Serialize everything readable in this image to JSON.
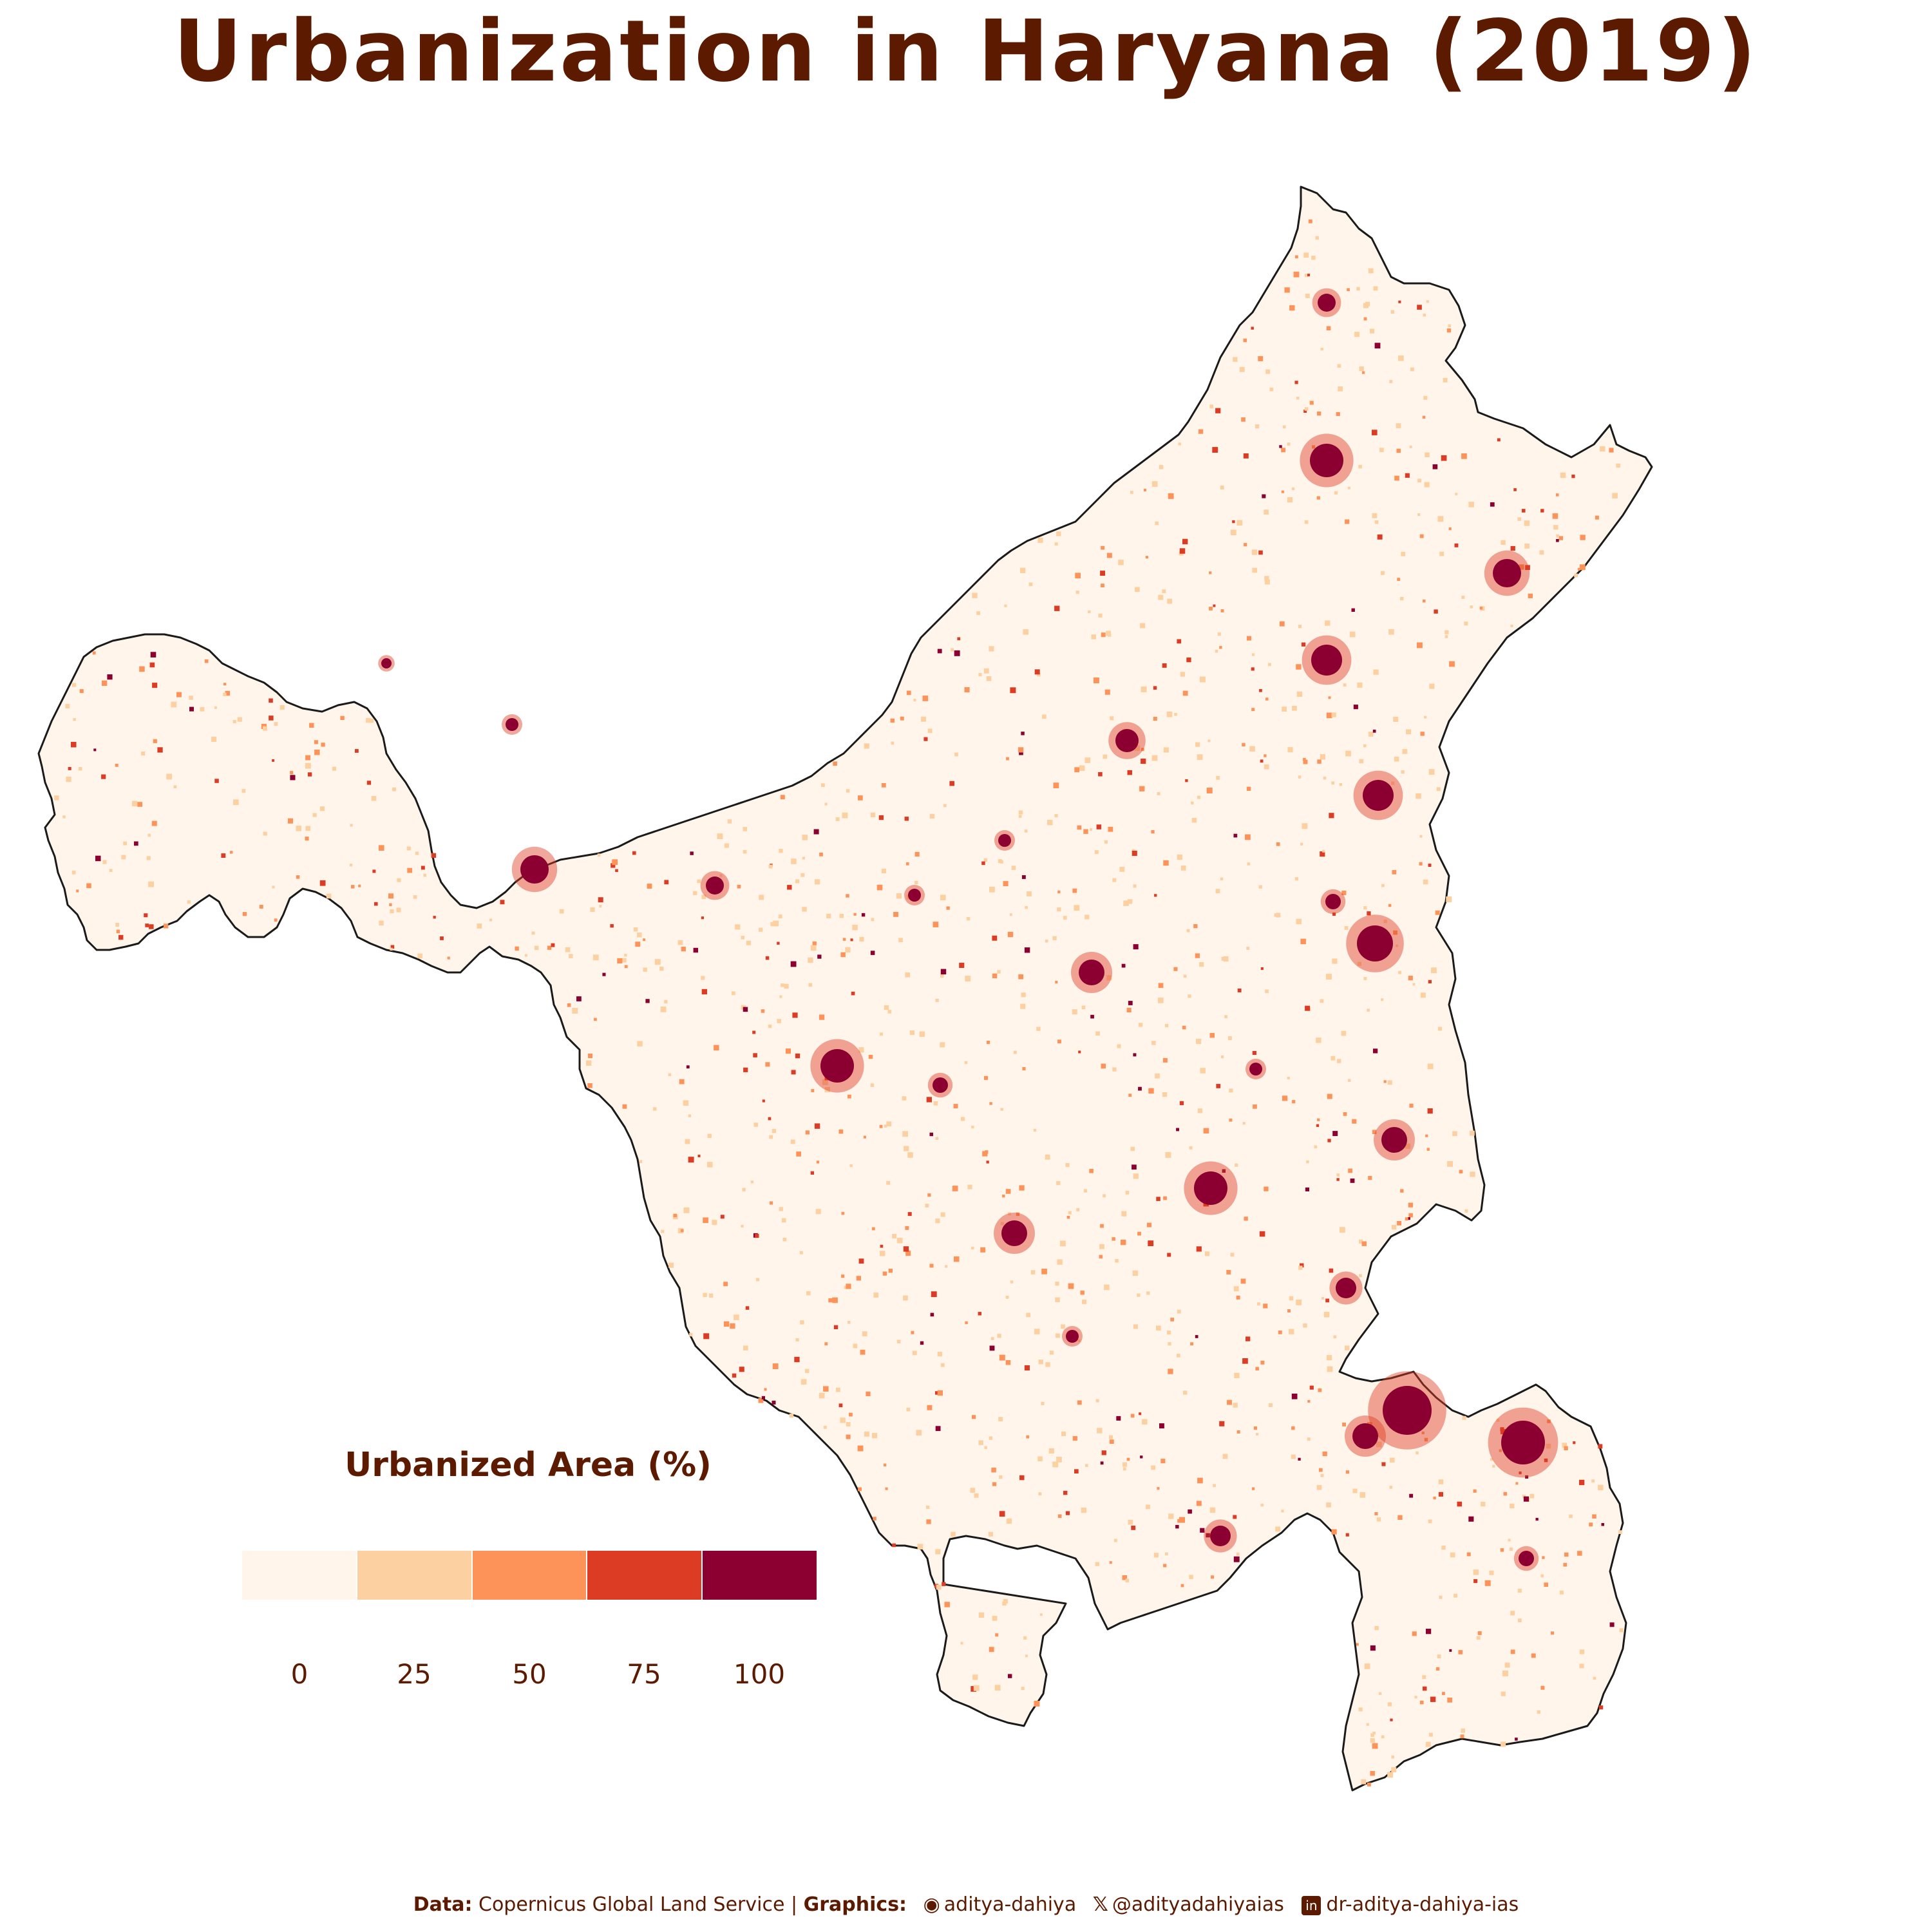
{
  "title": "Urbanization in Haryana (2019)",
  "legend": {
    "title": "Urbanized Area (%)",
    "colors": [
      "#fff5eb",
      "#fdd0a2",
      "#fd9358",
      "#dd3c24",
      "#8b0030"
    ],
    "tick_labels": [
      "0",
      "25",
      "50",
      "75",
      "100"
    ]
  },
  "caption": {
    "data_label": "Data:",
    "data_source": "Copernicus Global Land Service",
    "separator": "|",
    "graphics_label": "Graphics:",
    "github_icon": "github-icon",
    "github_handle": "aditya-dahiya",
    "x_icon": "x-twitter-icon",
    "x_handle": "@adityadahiyaias",
    "linkedin_icon": "linkedin-icon",
    "linkedin_handle": "dr-aditya-dahiya-ias"
  },
  "map": {
    "fill_color": "#fff5eb",
    "border_color": "#1a1a1a"
  }
}
